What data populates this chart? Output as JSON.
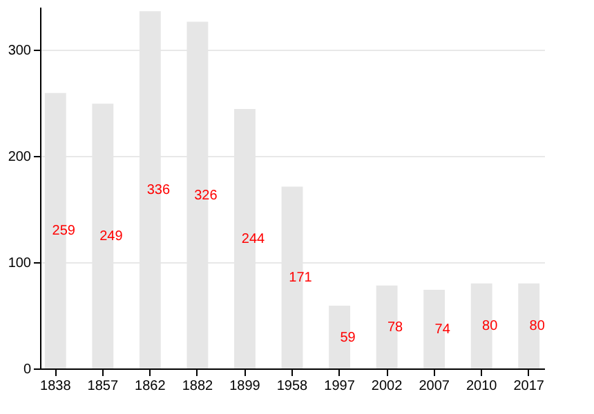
{
  "chart_data": {
    "type": "bar",
    "categories": [
      "1838",
      "1857",
      "1862",
      "1882",
      "1899",
      "1958",
      "1997",
      "2002",
      "2007",
      "2010",
      "2017"
    ],
    "values": [
      259,
      249,
      336,
      326,
      244,
      171,
      59,
      78,
      74,
      80,
      80
    ],
    "color": "#e6e6e6",
    "ylim": [
      0,
      340
    ],
    "yticks": [
      0,
      100,
      200,
      300
    ],
    "grid": "y",
    "data_labels": true
  }
}
